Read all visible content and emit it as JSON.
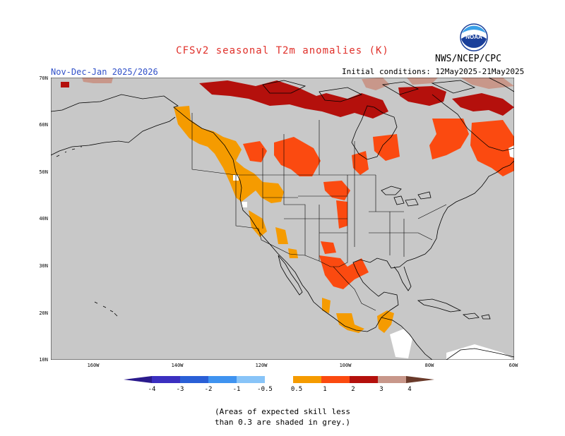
{
  "title": "CFSv2 seasonal T2m anomalies (K)",
  "period": "Nov-Dec-Jan 2025/2026",
  "initial_conditions": "Initial conditions: 12May2025-21May2025",
  "agency": "NWS/NCEP/CPC",
  "logo_text": "NOAA",
  "lat_labels": [
    "70N",
    "60N",
    "50N",
    "40N",
    "30N",
    "20N",
    "10N"
  ],
  "lon_labels": [
    "160W",
    "140W",
    "120W",
    "100W",
    "80W",
    "60W"
  ],
  "colorbar": {
    "labels": [
      "-4",
      "-3",
      "-2",
      "-1",
      "-0.5",
      "0.5",
      "1",
      "2",
      "3",
      "4"
    ],
    "colors": {
      "lt_-4": "#2a1a8c",
      "-4_-3": "#3b2fc0",
      "-3_-2": "#2a5fd6",
      "-2_-1": "#3f93f0",
      "-1_-0.5": "#88c4f8",
      "-0.5_0.5": "#ffffff",
      "0.5_1": "#f59b00",
      "1_2": "#fb4a10",
      "2_3": "#b4100c",
      "3_4": "#c8978a",
      "gt_4": "#6a3a2a"
    }
  },
  "colors": {
    "grey_low_skill": "#c8c8c8",
    "ocean_white": "#ffffff"
  },
  "note_line1": "(Areas of expected skill less",
  "note_line2": "than 0.3 are shaded in grey.)"
}
